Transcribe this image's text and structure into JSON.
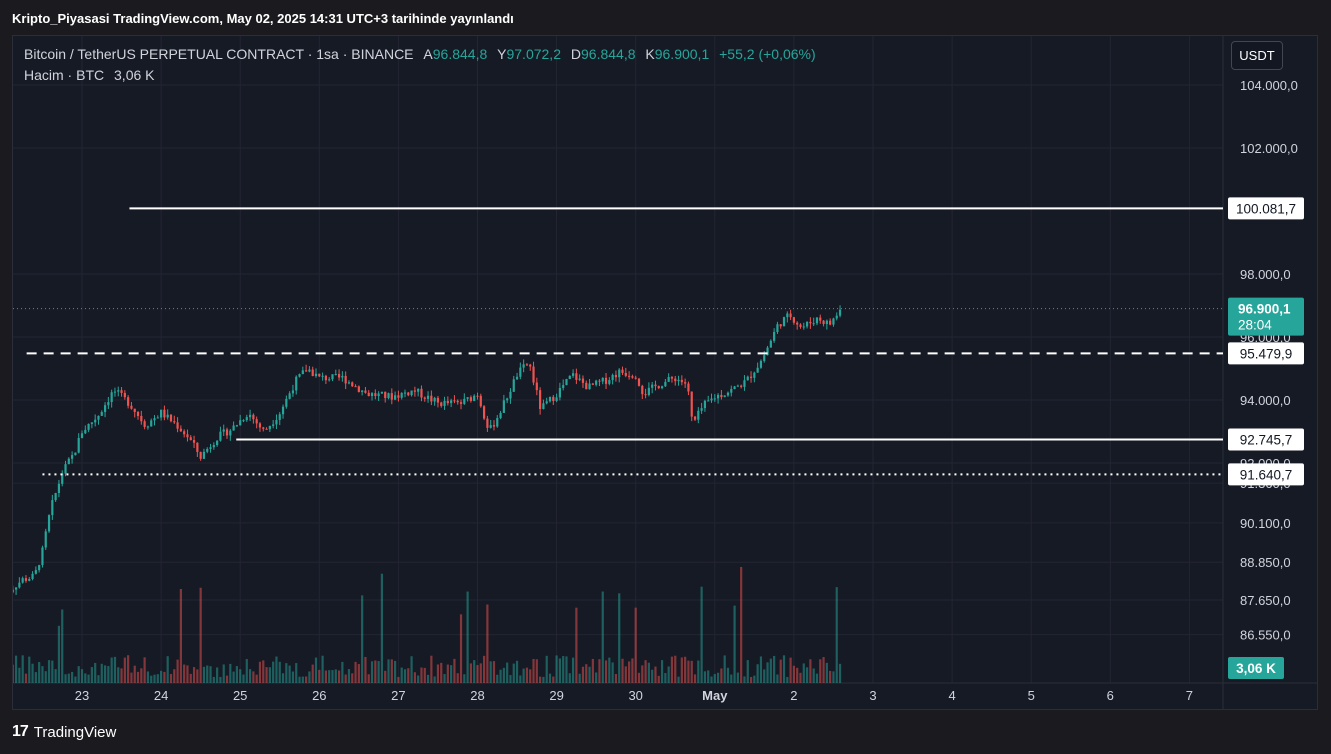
{
  "caption": "Kripto_Piyasasi TradingView.com, May 02, 2025 14:31 UTC+3 tarihinde yayınlandı",
  "legend": {
    "symbol": "Bitcoin / TetherUS PERPETUAL CONTRACT · 1sa · BINANCE",
    "open_label": "A",
    "open": "96.844,8",
    "high_label": "Y",
    "high": "97.072,2",
    "low_label": "D",
    "low": "96.844,8",
    "close_label": "K",
    "close": "96.900,1",
    "change": "+55,2 (+0,06%)",
    "volume_label": "Hacim · BTC",
    "volume": "3,06 K"
  },
  "currency_button": "USDT",
  "footer": {
    "brand": "TradingView"
  },
  "colors": {
    "up": "#26a69a",
    "down": "#ef5350",
    "background": "#161a25",
    "grid": "#232632",
    "line": "#ffffff"
  },
  "chart_data": {
    "type": "candlestick",
    "title": "",
    "xlabel": "",
    "ylabel": "",
    "x_tick_labels": [
      "23",
      "24",
      "25",
      "26",
      "27",
      "28",
      "29",
      "30",
      "May",
      "2",
      "3",
      "4",
      "5",
      "6",
      "7"
    ],
    "y_tick_labels": [
      "104.000,0",
      "102.000,0",
      "98.000,0",
      "96.000,0",
      "94.000,0",
      "92.000,0",
      "91.360,0",
      "90.100,0",
      "88.850,0",
      "87.650,0",
      "86.550,0"
    ],
    "y_tick_values": [
      104000,
      102000,
      98000,
      96000,
      94000,
      92000,
      91360,
      90100,
      88850,
      87650,
      86550
    ],
    "price_badges": [
      {
        "label": "100.081,7",
        "value": 100081.7
      },
      {
        "label": "95.479,9",
        "value": 95479.9
      },
      {
        "label": "92.745,7",
        "value": 92745.7
      },
      {
        "label": "91.640,7",
        "value": 91640.7
      }
    ],
    "last_price": {
      "label": "96.900,1",
      "countdown": "28:04",
      "value": 96900.1
    },
    "volume_badge": "3,06 K",
    "horizontal_lines": [
      {
        "value": 100081.7,
        "style": "solid",
        "from_day": 23.6
      },
      {
        "value": 95479.9,
        "style": "dashed",
        "from_day": 22.3
      },
      {
        "value": 92745.7,
        "style": "solid",
        "from_day": 24.95
      },
      {
        "value": 91640.7,
        "style": "dotted",
        "from_day": 22.5
      }
    ],
    "price_path": [
      {
        "day": 22.0,
        "price": 87700
      },
      {
        "day": 22.1,
        "price": 88000
      },
      {
        "day": 22.25,
        "price": 88300
      },
      {
        "day": 22.4,
        "price": 88400
      },
      {
        "day": 22.5,
        "price": 89200
      },
      {
        "day": 22.6,
        "price": 90500
      },
      {
        "day": 22.75,
        "price": 91700
      },
      {
        "day": 22.9,
        "price": 92300
      },
      {
        "day": 23.0,
        "price": 93000
      },
      {
        "day": 23.2,
        "price": 93500
      },
      {
        "day": 23.4,
        "price": 94300
      },
      {
        "day": 23.6,
        "price": 93900
      },
      {
        "day": 23.8,
        "price": 93200
      },
      {
        "day": 24.0,
        "price": 93600
      },
      {
        "day": 24.2,
        "price": 93200
      },
      {
        "day": 24.35,
        "price": 92800
      },
      {
        "day": 24.5,
        "price": 92200
      },
      {
        "day": 24.7,
        "price": 92800
      },
      {
        "day": 24.9,
        "price": 93100
      },
      {
        "day": 25.1,
        "price": 93600
      },
      {
        "day": 25.3,
        "price": 93000
      },
      {
        "day": 25.5,
        "price": 93600
      },
      {
        "day": 25.7,
        "price": 94600
      },
      {
        "day": 25.85,
        "price": 95000
      },
      {
        "day": 26.0,
        "price": 94700
      },
      {
        "day": 26.3,
        "price": 94700
      },
      {
        "day": 26.6,
        "price": 94200
      },
      {
        "day": 26.9,
        "price": 94100
      },
      {
        "day": 27.2,
        "price": 94300
      },
      {
        "day": 27.5,
        "price": 93900
      },
      {
        "day": 27.8,
        "price": 93900
      },
      {
        "day": 28.0,
        "price": 94200
      },
      {
        "day": 28.15,
        "price": 93000
      },
      {
        "day": 28.3,
        "price": 93700
      },
      {
        "day": 28.5,
        "price": 94800
      },
      {
        "day": 28.65,
        "price": 95200
      },
      {
        "day": 28.8,
        "price": 93700
      },
      {
        "day": 29.0,
        "price": 94200
      },
      {
        "day": 29.2,
        "price": 94800
      },
      {
        "day": 29.4,
        "price": 94400
      },
      {
        "day": 29.6,
        "price": 94600
      },
      {
        "day": 29.8,
        "price": 94900
      },
      {
        "day": 30.0,
        "price": 94800
      },
      {
        "day": 30.1,
        "price": 94200
      },
      {
        "day": 30.3,
        "price": 94500
      },
      {
        "day": 30.5,
        "price": 94700
      },
      {
        "day": 30.65,
        "price": 94500
      },
      {
        "day": 30.72,
        "price": 93200
      },
      {
        "day": 30.85,
        "price": 93800
      },
      {
        "day": 31.0,
        "price": 94100
      },
      {
        "day": 31.2,
        "price": 94300
      },
      {
        "day": 31.4,
        "price": 94600
      },
      {
        "day": 31.6,
        "price": 95300
      },
      {
        "day": 31.8,
        "price": 96400
      },
      {
        "day": 31.95,
        "price": 96700
      },
      {
        "day": 32.1,
        "price": 96300
      },
      {
        "day": 32.3,
        "price": 96600
      },
      {
        "day": 32.45,
        "price": 96400
      },
      {
        "day": 32.6,
        "price": 96900
      }
    ]
  }
}
